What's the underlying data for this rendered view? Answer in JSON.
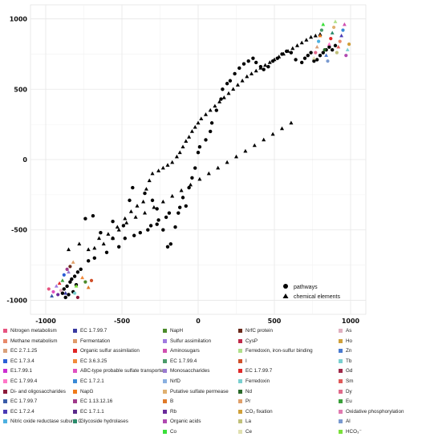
{
  "chart_data": {
    "type": "scatter",
    "title": "",
    "xlabel": "",
    "ylabel": "",
    "xlim": [
      -1100,
      1100
    ],
    "ylim": [
      -1100,
      1100
    ],
    "x_ticks": [
      -1000,
      -500,
      0,
      500,
      1000
    ],
    "y_ticks": [
      -1000,
      -500,
      0,
      500,
      1000
    ],
    "x_tick_labels": [
      "-1000",
      "-500",
      "0",
      "500",
      "1000"
    ],
    "y_tick_labels": [
      "-1000",
      "-500",
      "0",
      "500",
      "1000"
    ],
    "grid": true,
    "shape_legend": {
      "placement": "bottom-right",
      "entries": [
        {
          "label": "pathways",
          "shape": "circle"
        },
        {
          "label": "chemical elements",
          "shape": "triangle"
        }
      ]
    },
    "color_legend_columns": [
      [
        {
          "label": "Nitrogen metabolism",
          "color": "#e75480"
        },
        {
          "label": "Methane metabolism",
          "color": "#e8896a"
        },
        {
          "label": "EC 2.7.1.25",
          "color": "#d9a07a"
        },
        {
          "label": "EC 1.7.3.4",
          "color": "#2b5fd6"
        },
        {
          "label": "E1.7.99.1",
          "color": "#cc2fd0"
        },
        {
          "label": "EC 1.7.99.4",
          "color": "#ff77c8"
        },
        {
          "label": "Di- and oligosaccharides",
          "color": "#8b1a3a"
        },
        {
          "label": "EC 1.7.99.7",
          "color": "#3a5ca8"
        },
        {
          "label": "EC 1.7.2.4",
          "color": "#4a3ab5"
        },
        {
          "label": "Nitric oxide reductase subunit C",
          "color": "#4db0e0"
        }
      ],
      [
        {
          "label": "EC 1.7.99.7",
          "color": "#3a3aa0"
        },
        {
          "label": "Fermentation",
          "color": "#e09a6a"
        },
        {
          "label": "Organic sulfur assimilation",
          "color": "#e02626"
        },
        {
          "label": "EC 3.6.3.25",
          "color": "#f28a3a"
        },
        {
          "label": "ABC-type probable sulfate transporter",
          "color": "#e050c0"
        },
        {
          "label": "EC 1.7.2.1",
          "color": "#3a8ad6"
        },
        {
          "label": "NapG",
          "color": "#f07a1a"
        },
        {
          "label": "EC 1.13.12.16",
          "color": "#a03a8a"
        },
        {
          "label": "EC 1.7.1.1",
          "color": "#5a2a8a"
        },
        {
          "label": "Glycoside hydrolases",
          "color": "#2a8a6a"
        }
      ],
      [
        {
          "label": "NapH",
          "color": "#4a8a2a"
        },
        {
          "label": "Sulfur assimilation",
          "color": "#a07ae0"
        },
        {
          "label": "Aminosugars",
          "color": "#d050b0"
        },
        {
          "label": "EC 1.7.99.4",
          "color": "#4a9a6a"
        },
        {
          "label": "Monosaccharides",
          "color": "#9a7ad0"
        },
        {
          "label": "NrfD",
          "color": "#8ab0e0"
        },
        {
          "label": "Putative sulfate permease",
          "color": "#e0b070"
        },
        {
          "label": "B",
          "color": "#e07a2a"
        },
        {
          "label": "Rb",
          "color": "#6a2a9a"
        },
        {
          "label": "Organic acids",
          "color": "#b04ab0"
        },
        {
          "label": "Co",
          "color": "#3ae03a"
        }
      ],
      [
        {
          "label": "NrfC protein",
          "color": "#6a2a1a"
        },
        {
          "label": "CysP",
          "color": "#c02a4a"
        },
        {
          "label": "Ferredoxin, iron-sulfur binding",
          "color": "#b0e08a"
        },
        {
          "label": "I",
          "color": "#d0502a"
        },
        {
          "label": "EC 1.7.99.7",
          "color": "#e02a2a"
        },
        {
          "label": "Ferredoxin",
          "color": "#7ad0d0"
        },
        {
          "label": "Nd",
          "color": "#2a6a2a"
        },
        {
          "label": "Pr",
          "color": "#e0a06a"
        },
        {
          "label": "CO₂ fixation",
          "color": "#d0a03a"
        },
        {
          "label": "La",
          "color": "#c0c07a"
        },
        {
          "label": "Ce",
          "color": "#e0e0b0"
        }
      ],
      [
        {
          "label": "As",
          "color": "#e0b0c0"
        },
        {
          "label": "Ho",
          "color": "#d0a03a"
        },
        {
          "label": "Zn",
          "color": "#4a7ad0"
        },
        {
          "label": "Tb",
          "color": "#7ad0d0"
        },
        {
          "label": "Gd",
          "color": "#a02a4a"
        },
        {
          "label": "Sm",
          "color": "#e05a5a"
        },
        {
          "label": "Dy",
          "color": "#e06a8a"
        },
        {
          "label": "Eu",
          "color": "#3aa03a"
        },
        {
          "label": "Oxidative phosphorylation",
          "color": "#e07ab0"
        },
        {
          "label": "Al",
          "color": "#7a9ad0"
        },
        {
          "label": "HCO₃⁻",
          "color": "#7ae03a"
        }
      ]
    ],
    "series": [
      {
        "shape": "circle",
        "color": "#000000",
        "points": [
          [
            -740,
            -420
          ],
          [
            -690,
            -400
          ],
          [
            -640,
            -520
          ],
          [
            -560,
            -560
          ],
          [
            -560,
            -440
          ],
          [
            -490,
            -470
          ],
          [
            -450,
            -290
          ],
          [
            -430,
            -200
          ],
          [
            -350,
            -240
          ],
          [
            -300,
            -290
          ],
          [
            -270,
            -350
          ],
          [
            -270,
            -460
          ],
          [
            -230,
            -500
          ],
          [
            -200,
            -620
          ],
          [
            -180,
            -600
          ],
          [
            -150,
            -480
          ],
          [
            -130,
            -380
          ],
          [
            -80,
            -330
          ],
          [
            -60,
            -200
          ],
          [
            -40,
            -130
          ],
          [
            -20,
            -60
          ],
          [
            0,
            50
          ],
          [
            10,
            90
          ],
          [
            50,
            140
          ],
          [
            80,
            200
          ],
          [
            90,
            260
          ],
          [
            120,
            350
          ],
          [
            150,
            430
          ],
          [
            160,
            500
          ],
          [
            190,
            540
          ],
          [
            210,
            560
          ],
          [
            240,
            610
          ],
          [
            270,
            650
          ],
          [
            300,
            680
          ],
          [
            330,
            700
          ],
          [
            360,
            720
          ],
          [
            380,
            690
          ],
          [
            410,
            660
          ],
          [
            430,
            640
          ],
          [
            460,
            660
          ],
          [
            490,
            700
          ],
          [
            520,
            720
          ],
          [
            550,
            750
          ],
          [
            580,
            770
          ],
          [
            610,
            760
          ],
          [
            640,
            710
          ],
          [
            680,
            690
          ],
          [
            700,
            720
          ],
          [
            720,
            740
          ],
          [
            740,
            760
          ],
          [
            760,
            700
          ],
          [
            780,
            710
          ],
          [
            800,
            740
          ],
          [
            820,
            760
          ],
          [
            840,
            780
          ],
          [
            860,
            800
          ],
          [
            880,
            780
          ],
          [
            900,
            810
          ],
          [
            -880,
            -920
          ],
          [
            -860,
            -900
          ],
          [
            -840,
            -870
          ],
          [
            -820,
            -940
          ],
          [
            -800,
            -890
          ],
          [
            -890,
            -950
          ],
          [
            -870,
            -980
          ],
          [
            -850,
            -960
          ],
          [
            -830,
            -850
          ],
          [
            -810,
            -830
          ],
          [
            -790,
            -800
          ],
          [
            -770,
            -780
          ],
          [
            -720,
            -720
          ],
          [
            -680,
            -700
          ],
          [
            -600,
            -660
          ],
          [
            -520,
            -620
          ],
          [
            -480,
            -560
          ],
          [
            -420,
            -540
          ],
          [
            -380,
            -520
          ],
          [
            -330,
            -500
          ],
          [
            -310,
            -470
          ],
          [
            -260,
            -430
          ],
          [
            -210,
            -410
          ],
          [
            -190,
            -380
          ],
          [
            -120,
            -340
          ],
          [
            -100,
            -270
          ]
        ]
      },
      {
        "shape": "triangle",
        "color": "#000000",
        "points": [
          [
            -850,
            -640
          ],
          [
            -780,
            -600
          ],
          [
            -720,
            -640
          ],
          [
            -680,
            -630
          ],
          [
            -620,
            -600
          ],
          [
            -560,
            -560
          ],
          [
            -520,
            -500
          ],
          [
            -480,
            -420
          ],
          [
            -440,
            -370
          ],
          [
            -400,
            -330
          ],
          [
            -360,
            -300
          ],
          [
            -340,
            -210
          ],
          [
            -320,
            -150
          ],
          [
            -300,
            -100
          ],
          [
            -260,
            -80
          ],
          [
            -230,
            -60
          ],
          [
            -200,
            -40
          ],
          [
            -170,
            -20
          ],
          [
            -140,
            20
          ],
          [
            -120,
            50
          ],
          [
            -100,
            90
          ],
          [
            -80,
            130
          ],
          [
            -60,
            160
          ],
          [
            -40,
            200
          ],
          [
            -20,
            230
          ],
          [
            0,
            260
          ],
          [
            20,
            290
          ],
          [
            50,
            320
          ],
          [
            80,
            350
          ],
          [
            110,
            380
          ],
          [
            140,
            410
          ],
          [
            170,
            440
          ],
          [
            200,
            470
          ],
          [
            230,
            500
          ],
          [
            260,
            530
          ],
          [
            290,
            560
          ],
          [
            320,
            590
          ],
          [
            350,
            610
          ],
          [
            380,
            630
          ],
          [
            410,
            650
          ],
          [
            440,
            670
          ],
          [
            470,
            690
          ],
          [
            500,
            710
          ],
          [
            530,
            730
          ],
          [
            560,
            750
          ],
          [
            590,
            770
          ],
          [
            620,
            790
          ],
          [
            650,
            810
          ],
          [
            680,
            830
          ],
          [
            710,
            850
          ],
          [
            740,
            870
          ],
          [
            770,
            880
          ],
          [
            800,
            890
          ],
          [
            -650,
            -560
          ],
          [
            -590,
            -530
          ],
          [
            -530,
            -480
          ],
          [
            -470,
            -450
          ],
          [
            -410,
            -410
          ],
          [
            -350,
            -380
          ],
          [
            -290,
            -340
          ],
          [
            -230,
            -300
          ],
          [
            -170,
            -260
          ],
          [
            -110,
            -220
          ],
          [
            -50,
            -180
          ],
          [
            10,
            -140
          ],
          [
            70,
            -100
          ],
          [
            130,
            -60
          ],
          [
            190,
            -20
          ],
          [
            250,
            20
          ],
          [
            310,
            60
          ],
          [
            370,
            100
          ],
          [
            430,
            140
          ],
          [
            490,
            180
          ],
          [
            550,
            220
          ],
          [
            610,
            260
          ]
        ]
      },
      {
        "shape": "mixed",
        "color": "multi",
        "points": [
          [
            -980,
            -920
          ],
          [
            -960,
            -970
          ],
          [
            -950,
            -940
          ],
          [
            -930,
            -900
          ],
          [
            -920,
            -960
          ],
          [
            -910,
            -880
          ],
          [
            -900,
            -930
          ],
          [
            -890,
            -860
          ],
          [
            -880,
            -820
          ],
          [
            -870,
            -950
          ],
          [
            -860,
            -780
          ],
          [
            -850,
            -800
          ],
          [
            -840,
            -760
          ],
          [
            -820,
            -730
          ],
          [
            -810,
            -950
          ],
          [
            -800,
            -900
          ],
          [
            -790,
            -980
          ],
          [
            -760,
            -840
          ],
          [
            -740,
            -870
          ],
          [
            -720,
            -910
          ],
          [
            -700,
            -860
          ],
          [
            760,
            720
          ],
          [
            770,
            760
          ],
          [
            780,
            800
          ],
          [
            790,
            840
          ],
          [
            800,
            880
          ],
          [
            810,
            920
          ],
          [
            820,
            960
          ],
          [
            830,
            780
          ],
          [
            840,
            740
          ],
          [
            850,
            700
          ],
          [
            860,
            820
          ],
          [
            870,
            860
          ],
          [
            880,
            900
          ],
          [
            890,
            940
          ],
          [
            900,
            980
          ],
          [
            910,
            760
          ],
          [
            920,
            800
          ],
          [
            930,
            840
          ],
          [
            940,
            880
          ],
          [
            950,
            920
          ],
          [
            960,
            960
          ],
          [
            970,
            740
          ],
          [
            980,
            780
          ],
          [
            990,
            820
          ]
        ]
      }
    ]
  }
}
